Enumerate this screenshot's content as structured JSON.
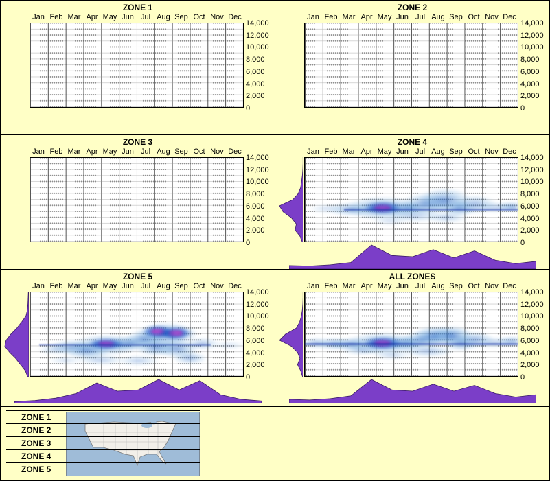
{
  "months": [
    "Jan",
    "Feb",
    "Mar",
    "Apr",
    "May",
    "Jun",
    "Jul",
    "Aug",
    "Sep",
    "Oct",
    "Nov",
    "Dec"
  ],
  "y_axis": {
    "ticks": [
      "14,000",
      "12,000",
      "10,000",
      "8,000",
      "6,000",
      "4,000",
      "2,000",
      "0"
    ],
    "min": 0,
    "max": 14000,
    "step": 2000
  },
  "legend": {
    "items": [
      "ZONE 1",
      "ZONE 2",
      "ZONE 3",
      "ZONE 4",
      "ZONE 5"
    ]
  },
  "colors": {
    "background": "#FFFFC6",
    "plot_bg": "#FFFFFF",
    "grid_line": "#555555",
    "heat_blue": "#1556BE",
    "heat_hot": "#EF0FBE",
    "marginal_purple": "#7B3EC8",
    "map_water": "#9FBCD8",
    "map_land": "#F2EFE9"
  },
  "chart_data": [
    {
      "type": "heatmap",
      "title": "ZONE 1",
      "x": "month",
      "y": "elevation_ft",
      "y_range": [
        0,
        14000
      ],
      "points": []
    },
    {
      "type": "heatmap",
      "title": "ZONE 2",
      "x": "month",
      "y": "elevation_ft",
      "y_range": [
        0,
        14000
      ],
      "points": []
    },
    {
      "type": "heatmap",
      "title": "ZONE 3",
      "x": "month",
      "y": "elevation_ft",
      "y_range": [
        0,
        14000
      ],
      "points": []
    },
    {
      "type": "heatmap",
      "title": "ZONE 4",
      "x": "month",
      "y": "elevation_ft",
      "y_range": [
        0,
        14000
      ],
      "points": [
        {
          "month": 4.4,
          "elevation": 5600,
          "rm": 1.1,
          "re": 1000,
          "hot": true
        },
        {
          "month": 4.4,
          "elevation": 5600,
          "rm": 2.2,
          "re": 2000,
          "a": 0.55
        },
        {
          "month": 2.6,
          "elevation": 5400,
          "rm": 1.4,
          "re": 1100,
          "a": 0.45
        },
        {
          "month": 1.2,
          "elevation": 5500,
          "rm": 1.0,
          "re": 800,
          "a": 0.2
        },
        {
          "month": 5.8,
          "elevation": 5600,
          "rm": 1.2,
          "re": 1000,
          "a": 0.5
        },
        {
          "month": 6.8,
          "elevation": 6300,
          "rm": 1.4,
          "re": 1900,
          "a": 0.5
        },
        {
          "month": 7.9,
          "elevation": 6800,
          "rm": 1.5,
          "re": 2100,
          "a": 0.55
        },
        {
          "month": 8.7,
          "elevation": 5600,
          "rm": 1.0,
          "re": 1300,
          "a": 0.5
        },
        {
          "month": 9.6,
          "elevation": 6200,
          "rm": 1.2,
          "re": 1600,
          "a": 0.4
        },
        {
          "month": 10.8,
          "elevation": 5700,
          "rm": 1.3,
          "re": 900,
          "a": 0.3
        },
        {
          "month": 11.7,
          "elevation": 5800,
          "rm": 0.9,
          "re": 900,
          "a": 0.45
        },
        {
          "month": 6.2,
          "elevation": 4300,
          "rm": 1.6,
          "re": 1100,
          "a": 0.3
        },
        {
          "month": 8.0,
          "elevation": 4000,
          "rm": 1.2,
          "re": 900,
          "a": 0.3
        },
        {
          "month": 4.8,
          "elevation": 3400,
          "rm": 1.0,
          "re": 700,
          "a": 0.2
        }
      ],
      "band": {
        "elevation": 5500,
        "from": 2.2,
        "to": 12,
        "alpha": 0.55
      },
      "elevation_profile": [
        0.02,
        0.02,
        0.03,
        0.05,
        0.08,
        0.12,
        0.22,
        0.45,
        1.0,
        0.85,
        0.5,
        0.3,
        0.35,
        0.15,
        0.05
      ],
      "month_profile": [
        0.12,
        0.1,
        0.15,
        0.25,
        1.0,
        0.55,
        0.5,
        0.8,
        0.45,
        0.75,
        0.35,
        0.2,
        0.3
      ]
    },
    {
      "type": "heatmap",
      "title": "ZONE 5",
      "x": "month",
      "y": "elevation_ft",
      "y_range": [
        0,
        14000
      ],
      "points": [
        {
          "month": 4.3,
          "elevation": 5400,
          "rm": 1.0,
          "re": 950,
          "hot": true
        },
        {
          "month": 4.3,
          "elevation": 5200,
          "rm": 2.0,
          "re": 1800,
          "a": 0.55
        },
        {
          "month": 7.2,
          "elevation": 7400,
          "rm": 0.9,
          "re": 1100,
          "hot": true
        },
        {
          "month": 8.2,
          "elevation": 7200,
          "rm": 0.9,
          "re": 1100,
          "hot": true
        },
        {
          "month": 7.7,
          "elevation": 7000,
          "rm": 1.8,
          "re": 2000,
          "a": 0.6
        },
        {
          "month": 2.3,
          "elevation": 4800,
          "rm": 1.2,
          "re": 1300,
          "a": 0.45
        },
        {
          "month": 3.2,
          "elevation": 4200,
          "rm": 1.3,
          "re": 1500,
          "a": 0.5
        },
        {
          "month": 1.4,
          "elevation": 4500,
          "rm": 1.0,
          "re": 900,
          "a": 0.25
        },
        {
          "month": 5.6,
          "elevation": 5400,
          "rm": 1.3,
          "re": 1200,
          "a": 0.5
        },
        {
          "month": 6.4,
          "elevation": 6200,
          "rm": 1.1,
          "re": 1400,
          "a": 0.5
        },
        {
          "month": 7.1,
          "elevation": 4800,
          "rm": 1.2,
          "re": 1500,
          "a": 0.55
        },
        {
          "month": 8.3,
          "elevation": 4600,
          "rm": 1.2,
          "re": 1600,
          "a": 0.5
        },
        {
          "month": 9.0,
          "elevation": 3000,
          "rm": 1.0,
          "re": 1000,
          "a": 0.4
        },
        {
          "month": 6.1,
          "elevation": 2600,
          "rm": 1.2,
          "re": 900,
          "a": 0.3
        },
        {
          "month": 4.0,
          "elevation": 2700,
          "rm": 1.4,
          "re": 900,
          "a": 0.3
        },
        {
          "month": 9.7,
          "elevation": 5400,
          "rm": 1.0,
          "re": 1000,
          "a": 0.35
        },
        {
          "month": 11.2,
          "elevation": 5200,
          "rm": 1.0,
          "re": 700,
          "a": 0.18
        },
        {
          "month": 2.0,
          "elevation": 2600,
          "rm": 1.0,
          "re": 700,
          "a": 0.2
        }
      ],
      "band": {
        "elevation": 5400,
        "from": 0.5,
        "to": 10.2,
        "alpha": 0.4
      },
      "elevation_profile": [
        0.02,
        0.03,
        0.04,
        0.06,
        0.12,
        0.3,
        0.5,
        0.75,
        0.95,
        1.0,
        0.8,
        0.55,
        0.35,
        0.15,
        0.05
      ],
      "month_profile": [
        0.05,
        0.1,
        0.2,
        0.4,
        0.85,
        0.5,
        0.55,
        1.0,
        0.55,
        0.95,
        0.35,
        0.15,
        0.08
      ]
    },
    {
      "type": "heatmap",
      "title": "ALL ZONES",
      "x": "month",
      "y": "elevation_ft",
      "y_range": [
        0,
        14000
      ],
      "points": [
        {
          "month": 4.4,
          "elevation": 5500,
          "rm": 1.1,
          "re": 1000,
          "hot": true
        },
        {
          "month": 4.4,
          "elevation": 5500,
          "rm": 2.2,
          "re": 1900,
          "a": 0.55
        },
        {
          "month": 0.6,
          "elevation": 5500,
          "rm": 0.9,
          "re": 900,
          "a": 0.4
        },
        {
          "month": 1.6,
          "elevation": 5400,
          "rm": 1.0,
          "re": 1000,
          "a": 0.45
        },
        {
          "month": 2.6,
          "elevation": 5300,
          "rm": 1.2,
          "re": 1100,
          "a": 0.5
        },
        {
          "month": 5.7,
          "elevation": 5500,
          "rm": 1.2,
          "re": 1100,
          "a": 0.5
        },
        {
          "month": 6.6,
          "elevation": 6100,
          "rm": 1.2,
          "re": 1500,
          "a": 0.5
        },
        {
          "month": 7.3,
          "elevation": 6700,
          "rm": 1.2,
          "re": 1700,
          "a": 0.6
        },
        {
          "month": 8.3,
          "elevation": 6700,
          "rm": 1.2,
          "re": 1700,
          "a": 0.65
        },
        {
          "month": 8.8,
          "elevation": 5500,
          "rm": 1.0,
          "re": 1200,
          "a": 0.5
        },
        {
          "month": 9.6,
          "elevation": 6100,
          "rm": 1.1,
          "re": 1400,
          "a": 0.45
        },
        {
          "month": 10.7,
          "elevation": 5600,
          "rm": 1.2,
          "re": 900,
          "a": 0.3
        },
        {
          "month": 11.7,
          "elevation": 5800,
          "rm": 0.9,
          "re": 900,
          "a": 0.45
        },
        {
          "month": 6.9,
          "elevation": 4200,
          "rm": 1.5,
          "re": 1100,
          "a": 0.35
        },
        {
          "month": 4.9,
          "elevation": 3500,
          "rm": 1.1,
          "re": 800,
          "a": 0.25
        },
        {
          "month": 3.2,
          "elevation": 4300,
          "rm": 1.1,
          "re": 900,
          "a": 0.3
        }
      ],
      "band": {
        "elevation": 5500,
        "from": 0,
        "to": 12,
        "alpha": 0.6
      },
      "elevation_profile": [
        0.02,
        0.02,
        0.03,
        0.05,
        0.09,
        0.16,
        0.3,
        0.75,
        1.0,
        0.5,
        0.25,
        0.15,
        0.25,
        0.12,
        0.04
      ],
      "month_profile": [
        0.15,
        0.12,
        0.18,
        0.3,
        1.0,
        0.55,
        0.5,
        0.8,
        0.5,
        0.75,
        0.4,
        0.25,
        0.35
      ]
    }
  ]
}
